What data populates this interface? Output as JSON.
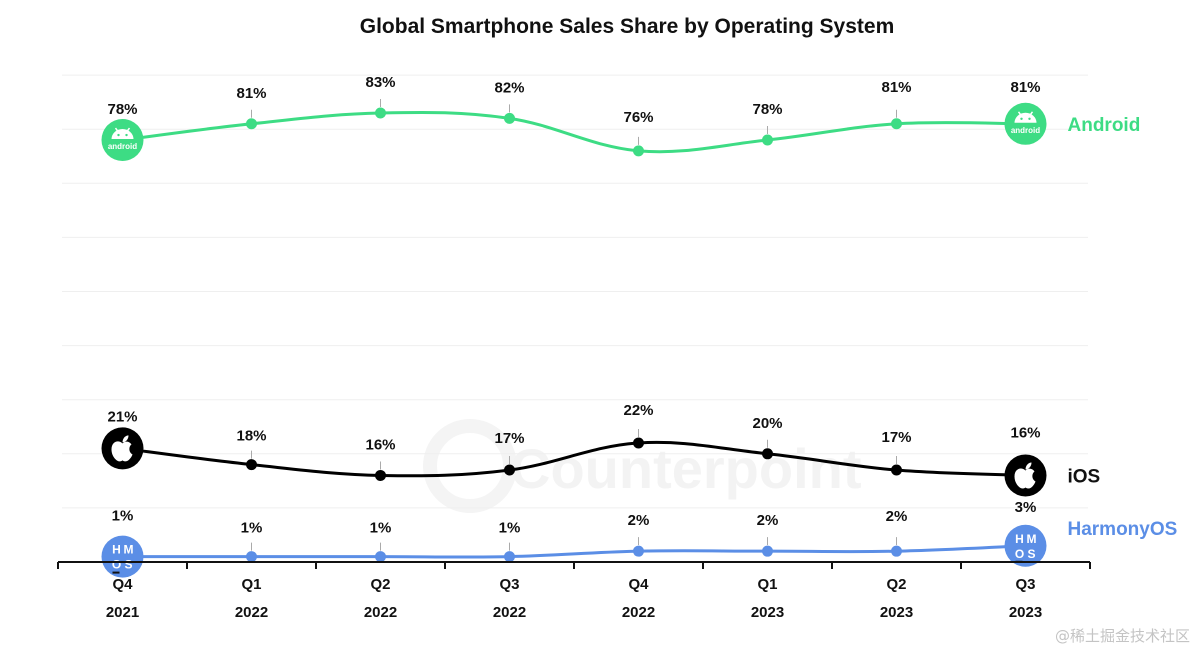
{
  "chart_data": {
    "type": "line",
    "title": "Global Smartphone Sales Share by Operating System",
    "xlabel": "",
    "ylabel": "",
    "ylim": [
      0,
      90
    ],
    "grid": true,
    "y_gridlines": [
      10,
      20,
      30,
      40,
      50,
      60,
      70,
      80,
      90
    ],
    "categories": [
      {
        "quarter": "Q4",
        "year": "2021"
      },
      {
        "quarter": "Q1",
        "year": "2022"
      },
      {
        "quarter": "Q2",
        "year": "2022"
      },
      {
        "quarter": "Q3",
        "year": "2022"
      },
      {
        "quarter": "Q4",
        "year": "2022"
      },
      {
        "quarter": "Q1",
        "year": "2023"
      },
      {
        "quarter": "Q2",
        "year": "2023"
      },
      {
        "quarter": "Q3",
        "year": "2023"
      }
    ],
    "series": [
      {
        "name": "Android",
        "color": "#3ddc84",
        "icon": "android-icon",
        "icon_text": "android",
        "values": [
          78,
          81,
          83,
          82,
          76,
          78,
          81,
          81
        ]
      },
      {
        "name": "iOS",
        "color": "#000000",
        "icon": "apple-icon",
        "icon_text": "",
        "values": [
          21,
          18,
          16,
          17,
          22,
          20,
          17,
          16
        ]
      },
      {
        "name": "HarmonyOS",
        "color": "#5b8ee6",
        "icon": "harmonyos-icon",
        "icon_text": "HMOS",
        "values": [
          1,
          1,
          1,
          1,
          2,
          2,
          2,
          3
        ]
      }
    ],
    "value_suffix": "%",
    "legend_placement": "right (labels at line ends)"
  },
  "watermarks": {
    "center": "Counterpoint",
    "corner": "@稀土掘金技术社区"
  }
}
